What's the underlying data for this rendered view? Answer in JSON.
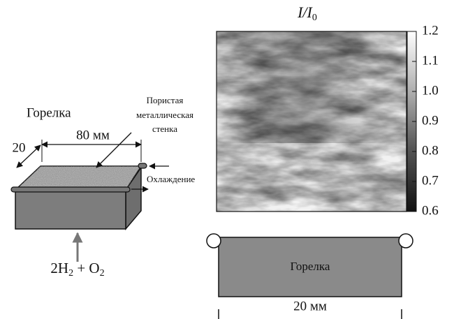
{
  "left_diagram": {
    "burner_label": "Горелка",
    "wall_label": [
      "Пористая",
      "металлическая",
      "стенка"
    ],
    "length_label": "80 мм",
    "width_label": "20",
    "cooling_label": "Охлаждение",
    "fuel_label": [
      "2H",
      "2",
      " + O",
      "2"
    ]
  },
  "heatmap": {
    "title": [
      "I/I",
      "0"
    ],
    "colorbar": {
      "range": [
        0.6,
        1.2
      ],
      "ticks": [
        1.2,
        1.1,
        {
          "value": 1,
          "label": "1.0"
        },
        0.9,
        0.8,
        0.7,
        0.6
      ]
    }
  },
  "bottom_diagram": {
    "burner_label": "Горелка",
    "width_label": "20 мм"
  }
}
